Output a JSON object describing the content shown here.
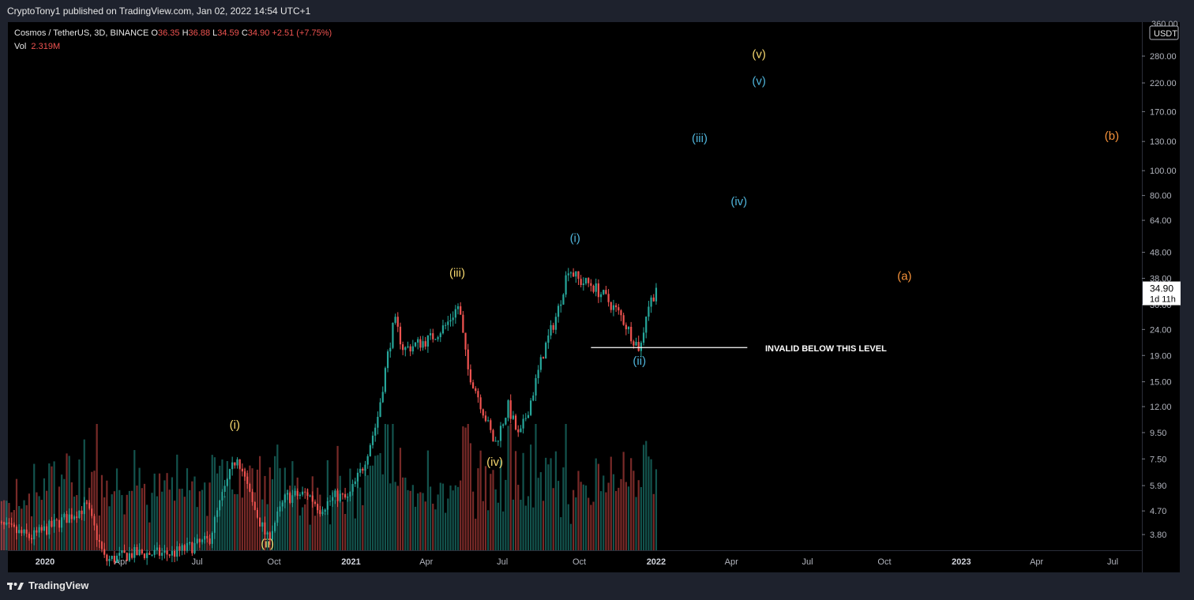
{
  "publisher_line": "CryptoTony1 published on TradingView.com, Jan 02, 2022 14:54 UTC+1",
  "footer_logo": "TradingView",
  "colors": {
    "background": "#000000",
    "frame": "#1e222d",
    "up": "#26a69a",
    "down": "#ef5350",
    "yellow_label": "#f5d76e",
    "blue_label": "#4fb3d9",
    "orange_label": "#f6923a",
    "invalid_line": "#ffffff"
  },
  "header": {
    "symbol": "Cosmos / TetherUS, 3D, BINANCE",
    "open_label": "O",
    "open": "36.35",
    "high_label": "H",
    "high": "36.88",
    "low_label": "L",
    "low": "34.59",
    "close_label": "C",
    "close": "34.90",
    "change": "+2.51 (+7.75%)",
    "vol_label": "Vol",
    "vol": "2.319M"
  },
  "price_axis": {
    "currency": "USDT",
    "current_price": "34.90",
    "countdown": "1d 11h",
    "partially_visible_top": "360.00"
  },
  "chart_data": {
    "type": "candlestick",
    "symbol": "Cosmos / TetherUS",
    "timeframe": "3D",
    "exchange": "BINANCE",
    "y_scale": "log",
    "ylim": [
      3.3,
      380
    ],
    "y_ticks": [
      3.8,
      4.7,
      5.9,
      7.5,
      9.5,
      12.0,
      15.0,
      19.0,
      24.0,
      30.0,
      38.0,
      48.0,
      64.0,
      80.0,
      100.0,
      130.0,
      170.0,
      220.0,
      280.0
    ],
    "y_tick_labels": [
      "3.80",
      "4.70",
      "5.90",
      "7.50",
      "9.50",
      "12.00",
      "15.00",
      "19.00",
      "24.00",
      "30.00",
      "38.00",
      "48.00",
      "64.00",
      "80.00",
      "100.00",
      "130.00",
      "170.00",
      "220.00",
      "280.00"
    ],
    "x_ticks": [
      {
        "label": "2020",
        "date": "2020-01-01",
        "bold": true
      },
      {
        "label": "Apr",
        "date": "2020-04-01"
      },
      {
        "label": "Jul",
        "date": "2020-07-01"
      },
      {
        "label": "Oct",
        "date": "2020-10-01"
      },
      {
        "label": "2021",
        "date": "2021-01-01",
        "bold": true
      },
      {
        "label": "Apr",
        "date": "2021-04-01"
      },
      {
        "label": "Jul",
        "date": "2021-07-01"
      },
      {
        "label": "Oct",
        "date": "2021-10-01"
      },
      {
        "label": "2022",
        "date": "2022-01-01",
        "bold": true
      },
      {
        "label": "Apr",
        "date": "2022-04-01"
      },
      {
        "label": "Jul",
        "date": "2022-07-01"
      },
      {
        "label": "Oct",
        "date": "2022-10-01"
      },
      {
        "label": "2023",
        "date": "2023-01-01",
        "bold": true
      },
      {
        "label": "Apr",
        "date": "2023-04-01"
      },
      {
        "label": "Jul",
        "date": "2023-07-01"
      }
    ],
    "price_path": [
      [
        "2019-11-01",
        4.2
      ],
      [
        "2019-12-15",
        3.7
      ],
      [
        "2020-01-15",
        4.2
      ],
      [
        "2020-02-20",
        4.9
      ],
      [
        "2020-03-13",
        3.0
      ],
      [
        "2020-04-15",
        3.2
      ],
      [
        "2020-06-01",
        3.2
      ],
      [
        "2020-07-15",
        3.6
      ],
      [
        "2020-08-01",
        5.5
      ],
      [
        "2020-08-18",
        7.8
      ],
      [
        "2020-09-05",
        5.0
      ],
      [
        "2020-09-23",
        3.65
      ],
      [
        "2020-10-15",
        5.3
      ],
      [
        "2020-11-10",
        5.5
      ],
      [
        "2020-11-25",
        4.8
      ],
      [
        "2020-12-15",
        5.4
      ],
      [
        "2020-12-28",
        5.2
      ],
      [
        "2021-01-15",
        7.0
      ],
      [
        "2021-02-01",
        10.5
      ],
      [
        "2021-02-15",
        20.0
      ],
      [
        "2021-02-22",
        26.0
      ],
      [
        "2021-03-05",
        20.0
      ],
      [
        "2021-03-20",
        21.0
      ],
      [
        "2021-04-05",
        22.0
      ],
      [
        "2021-04-25",
        25.0
      ],
      [
        "2021-05-10",
        30.0
      ],
      [
        "2021-05-20",
        17.0
      ],
      [
        "2021-06-01",
        13.5
      ],
      [
        "2021-06-22",
        8.5
      ],
      [
        "2021-07-08",
        12.0
      ],
      [
        "2021-07-21",
        9.0
      ],
      [
        "2021-08-05",
        13.0
      ],
      [
        "2021-08-20",
        20.0
      ],
      [
        "2021-09-05",
        28.0
      ],
      [
        "2021-09-18",
        42.0
      ],
      [
        "2021-10-01",
        37.0
      ],
      [
        "2021-10-15",
        36.0
      ],
      [
        "2021-11-01",
        32.0
      ],
      [
        "2021-11-20",
        27.0
      ],
      [
        "2021-12-05",
        22.0
      ],
      [
        "2021-12-13",
        20.0
      ],
      [
        "2021-12-21",
        29.0
      ],
      [
        "2022-01-02",
        34.9
      ]
    ],
    "annotations": [
      {
        "text": "(i)",
        "color": "yellow",
        "date": "2020-08-15",
        "price": 10.2
      },
      {
        "text": "(ii)",
        "color": "yellow",
        "date": "2020-09-23",
        "price": 3.5
      },
      {
        "text": "(iii)",
        "color": "yellow",
        "date": "2021-05-08",
        "price": 40.0
      },
      {
        "text": "(iv)",
        "color": "yellow",
        "date": "2021-06-22",
        "price": 7.3
      },
      {
        "text": "(v)",
        "color": "yellow",
        "date": "2022-05-04",
        "price": 285
      },
      {
        "text": "(i)",
        "color": "blue",
        "date": "2021-09-26",
        "price": 54.5
      },
      {
        "text": "(ii)",
        "color": "blue",
        "date": "2021-12-12",
        "price": 18.1
      },
      {
        "text": "(iii)",
        "color": "blue",
        "date": "2022-02-22",
        "price": 134
      },
      {
        "text": "(iv)",
        "color": "blue",
        "date": "2022-04-10",
        "price": 76
      },
      {
        "text": "(v)",
        "color": "blue",
        "date": "2022-05-04",
        "price": 224
      },
      {
        "text": "(a)",
        "color": "orange",
        "date": "2022-10-25",
        "price": 38.8
      },
      {
        "text": "(b)",
        "color": "orange",
        "date": "2023-06-30",
        "price": 137
      }
    ],
    "invalid_level": {
      "price": 20.4,
      "from": "2021-10-15",
      "to": "2022-04-20",
      "label": "INVALID BELOW THIS LEVEL"
    }
  }
}
